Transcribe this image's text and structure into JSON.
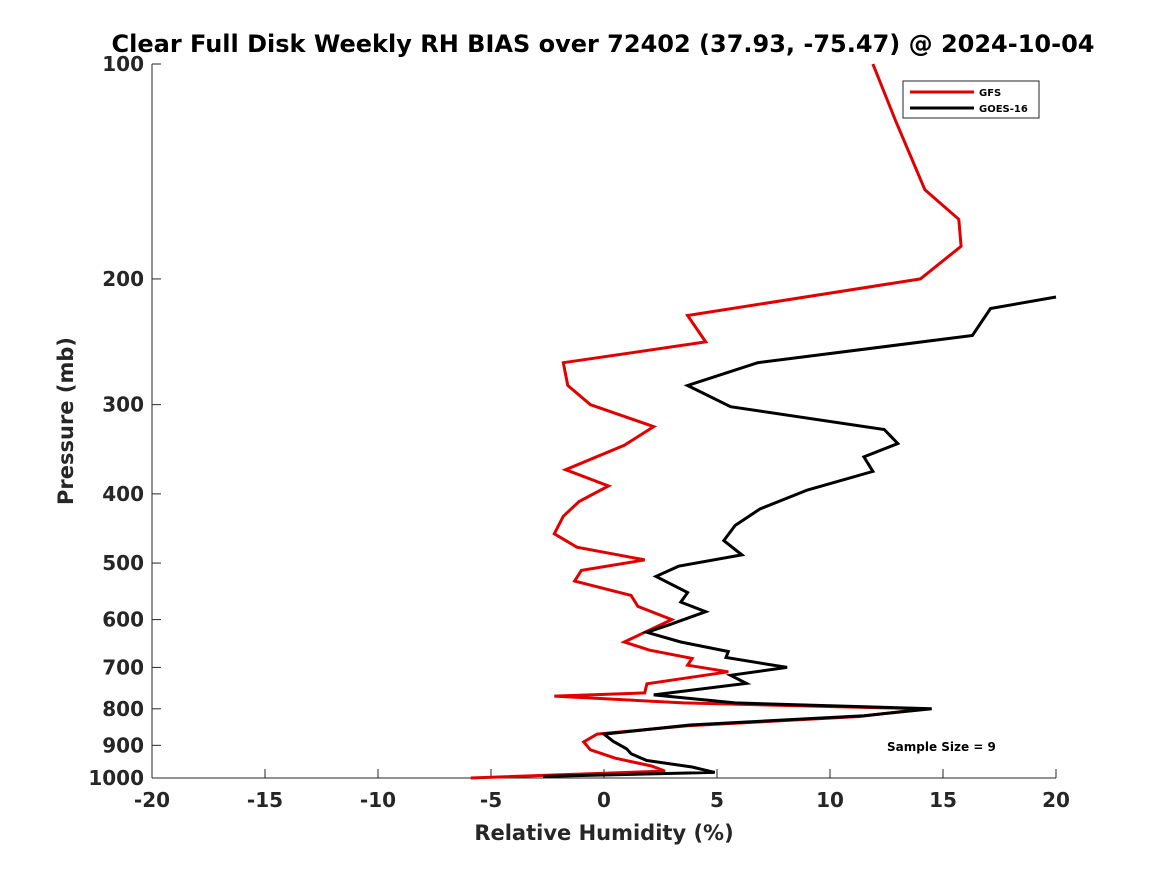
{
  "chart_data": {
    "type": "line",
    "title": "Clear Full Disk Weekly RH BIAS over 72402 (37.93, -75.47) @ 2024-10-04",
    "xlabel": "Relative Humidity (%)",
    "ylabel": "Pressure (mb)",
    "xlim": [
      -20,
      20
    ],
    "ylim": [
      100,
      1000
    ],
    "yscale": "log",
    "y_reversed": true,
    "xticks": [
      -20,
      -15,
      -10,
      -5,
      0,
      5,
      10,
      15,
      20
    ],
    "xtick_labels": [
      "-20",
      "-15",
      "-10",
      "-5",
      "0",
      "5",
      "10",
      "15",
      "20"
    ],
    "yticks": [
      100,
      200,
      300,
      400,
      500,
      600,
      700,
      800,
      900,
      1000
    ],
    "ytick_labels": [
      "100",
      "200",
      "300",
      "400",
      "500",
      "600",
      "700",
      "800",
      "900",
      "1000"
    ],
    "grid": false,
    "legend_position": "top-right",
    "annotation": "Sample Size = 9",
    "series": [
      {
        "name": "GFS",
        "color": "#e00000",
        "points": [
          [
            11.9,
            100
          ],
          [
            12.9,
            120
          ],
          [
            14.2,
            150
          ],
          [
            15.7,
            165
          ],
          [
            15.8,
            180
          ],
          [
            14.0,
            200
          ],
          [
            3.7,
            225
          ],
          [
            4.5,
            245
          ],
          [
            -1.8,
            262
          ],
          [
            -1.6,
            282
          ],
          [
            -0.6,
            300
          ],
          [
            2.2,
            322
          ],
          [
            0.9,
            342
          ],
          [
            -1.7,
            370
          ],
          [
            0.2,
            390
          ],
          [
            -1.1,
            410
          ],
          [
            -1.8,
            430
          ],
          [
            -2.2,
            455
          ],
          [
            -1.2,
            475
          ],
          [
            1.8,
            495
          ],
          [
            -1.0,
            512
          ],
          [
            -1.3,
            530
          ],
          [
            1.2,
            555
          ],
          [
            1.5,
            575
          ],
          [
            3.0,
            600
          ],
          [
            1.8,
            625
          ],
          [
            0.9,
            645
          ],
          [
            2.0,
            662
          ],
          [
            3.9,
            680
          ],
          [
            3.7,
            695
          ],
          [
            5.5,
            710
          ],
          [
            1.9,
            738
          ],
          [
            1.8,
            760
          ],
          [
            -2.2,
            768
          ],
          [
            3.5,
            785
          ],
          [
            14.2,
            800
          ],
          [
            11.3,
            820
          ],
          [
            3.7,
            845
          ],
          [
            -0.3,
            868
          ],
          [
            -0.9,
            890
          ],
          [
            -0.6,
            913
          ],
          [
            0.5,
            938
          ],
          [
            2.1,
            962
          ],
          [
            2.7,
            978
          ],
          [
            -5.9,
            1000
          ]
        ]
      },
      {
        "name": "GOES-16",
        "color": "#000000",
        "points": [
          [
            20.0,
            212
          ],
          [
            17.1,
            220
          ],
          [
            16.3,
            240
          ],
          [
            6.8,
            262
          ],
          [
            3.7,
            282
          ],
          [
            5.6,
            302
          ],
          [
            12.4,
            325
          ],
          [
            13.0,
            340
          ],
          [
            11.5,
            355
          ],
          [
            11.9,
            372
          ],
          [
            9.0,
            395
          ],
          [
            6.9,
            420
          ],
          [
            5.8,
            443
          ],
          [
            5.3,
            465
          ],
          [
            6.1,
            487
          ],
          [
            3.3,
            505
          ],
          [
            2.3,
            522
          ],
          [
            3.7,
            550
          ],
          [
            3.4,
            567
          ],
          [
            4.5,
            585
          ],
          [
            2.9,
            610
          ],
          [
            1.9,
            625
          ],
          [
            3.4,
            645
          ],
          [
            5.5,
            665
          ],
          [
            5.4,
            678
          ],
          [
            8.1,
            700
          ],
          [
            5.6,
            718
          ],
          [
            6.3,
            737
          ],
          [
            2.2,
            765
          ],
          [
            5.8,
            785
          ],
          [
            14.5,
            800
          ],
          [
            11.5,
            818
          ],
          [
            3.8,
            843
          ],
          [
            0.0,
            868
          ],
          [
            0.4,
            888
          ],
          [
            1.0,
            910
          ],
          [
            1.2,
            925
          ],
          [
            1.9,
            945
          ],
          [
            3.9,
            965
          ],
          [
            4.9,
            982
          ],
          [
            -2.7,
            995
          ]
        ]
      }
    ]
  }
}
